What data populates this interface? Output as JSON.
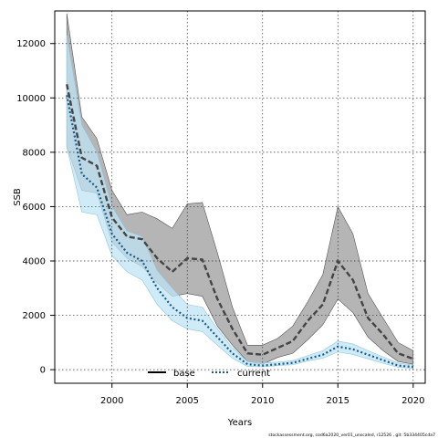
{
  "chart_data": {
    "type": "line",
    "xlabel": "Years",
    "ylabel": "SSB",
    "xlim": [
      1996.2,
      2020.8
    ],
    "ylim": [
      -500,
      13200
    ],
    "x_ticks": [
      2000,
      2005,
      2010,
      2015,
      2020
    ],
    "y_ticks": [
      0,
      2000,
      4000,
      6000,
      8000,
      10000,
      12000
    ],
    "grid": true,
    "legend_placement": "bottom-center",
    "x": [
      1997,
      1998,
      1999,
      2000,
      2001,
      2002,
      2003,
      2004,
      2005,
      2006,
      2007,
      2008,
      2009,
      2010,
      2011,
      2012,
      2013,
      2014,
      2015,
      2016,
      2017,
      2018,
      2019,
      2020
    ],
    "series": [
      {
        "name": "base",
        "color": "#222222",
        "line_style": "dashed",
        "values": [
          10500,
          7800,
          7500,
          5600,
          4900,
          4800,
          4100,
          3600,
          4100,
          4050,
          2600,
          1500,
          600,
          550,
          800,
          1050,
          1800,
          2400,
          4000,
          3300,
          1900,
          1300,
          600,
          400
        ],
        "lower": [
          8200,
          6600,
          6500,
          4700,
          4100,
          3800,
          3200,
          2700,
          2800,
          2700,
          1600,
          900,
          300,
          200,
          450,
          600,
          1100,
          1650,
          2600,
          2100,
          1200,
          700,
          300,
          200
        ],
        "upper": [
          13100,
          9300,
          8500,
          6600,
          5700,
          5800,
          5550,
          5200,
          6100,
          6150,
          4300,
          2300,
          900,
          900,
          1150,
          1600,
          2500,
          3500,
          6000,
          5000,
          2800,
          1900,
          1000,
          700
        ],
        "band_color": "#a8a8a8"
      },
      {
        "name": "current",
        "color": "#1a5a8a",
        "line_style": "dotted",
        "values": [
          10100,
          7200,
          6700,
          5000,
          4300,
          4000,
          3000,
          2300,
          1900,
          1800,
          1200,
          600,
          200,
          150,
          200,
          250,
          400,
          550,
          850,
          750,
          550,
          350,
          150,
          100
        ],
        "lower": [
          8200,
          5800,
          5700,
          4200,
          3600,
          3300,
          2400,
          1800,
          1500,
          1400,
          900,
          420,
          120,
          100,
          150,
          180,
          320,
          420,
          650,
          560,
          400,
          230,
          90,
          50
        ],
        "upper": [
          12300,
          9000,
          8000,
          6000,
          5100,
          4900,
          3650,
          3000,
          2400,
          2300,
          1500,
          800,
          300,
          250,
          280,
          330,
          520,
          700,
          1050,
          950,
          700,
          470,
          240,
          170
        ],
        "band_color": "#bfe4f5"
      }
    ]
  },
  "footer_text": "stockassessment.org, cod6a2020_ver01_unscaled, r12526 , git: 5b334405cda7"
}
